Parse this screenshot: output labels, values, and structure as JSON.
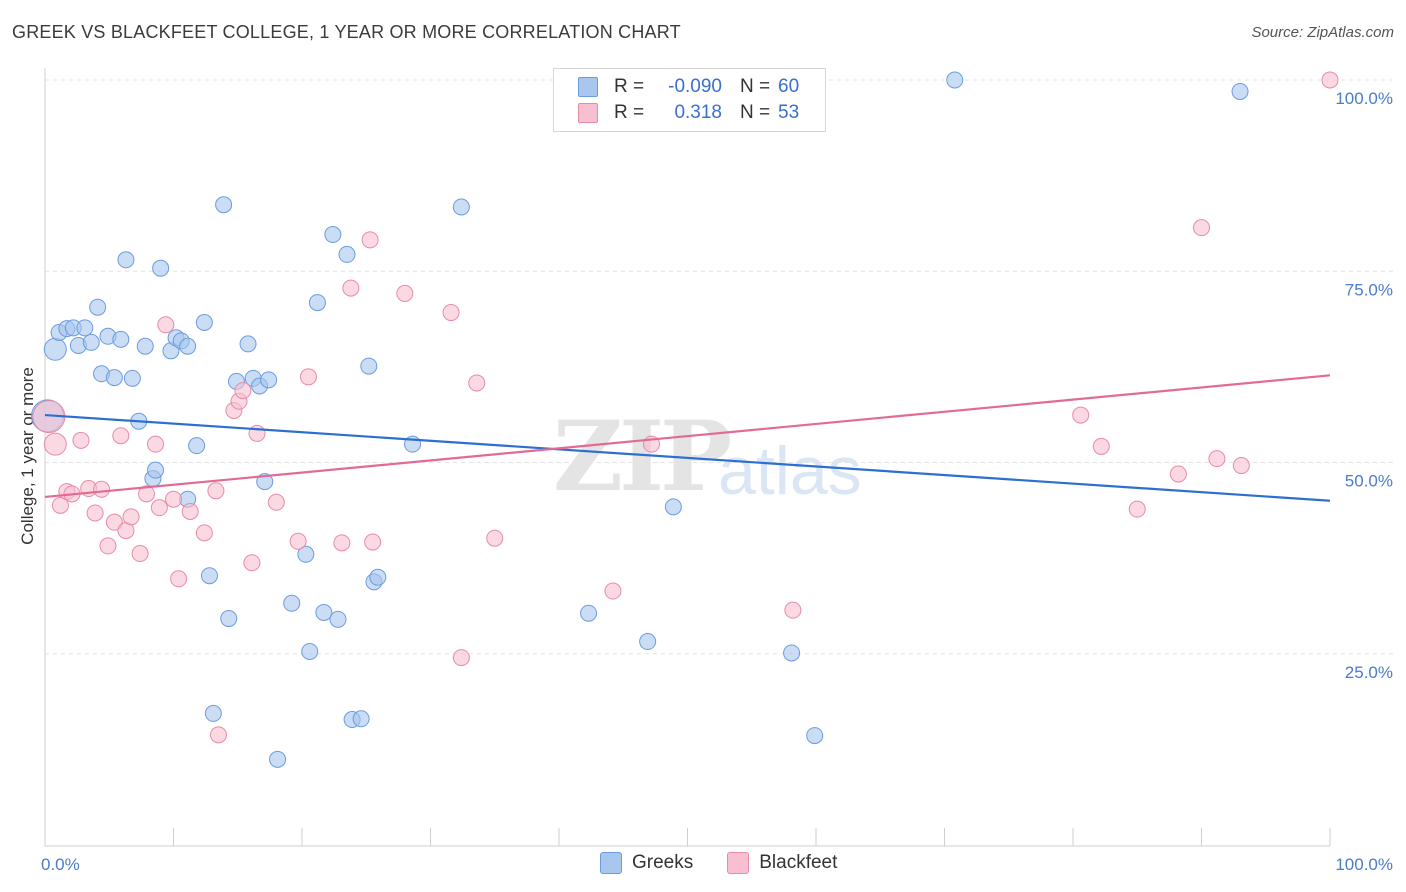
{
  "header": {
    "title": "GREEK VS BLACKFEET COLLEGE, 1 YEAR OR MORE CORRELATION CHART",
    "source": "Source: ZipAtlas.com"
  },
  "watermark": {
    "zip": "ZIP",
    "atlas": "atlas"
  },
  "legend": {
    "rows": [
      {
        "r_label": "R =",
        "r_value": "-0.090",
        "n_label": "N =",
        "n_value": "60",
        "color": "#a8c6ee",
        "border": "#6a9ce0"
      },
      {
        "r_label": "R =",
        "r_value": "0.318",
        "n_label": "N =",
        "n_value": "53",
        "color": "#f8bfd0",
        "border": "#e98aa8"
      }
    ]
  },
  "bottom_legend": {
    "greeks": "Greeks",
    "blackfeet": "Blackfeet"
  },
  "chart_data": {
    "type": "scatter",
    "title": "GREEK VS BLACKFEET COLLEGE, 1 YEAR OR MORE CORRELATION CHART",
    "xlabel": "",
    "ylabel": "College, 1 year or more",
    "xlim": [
      0,
      100
    ],
    "ylim": [
      0,
      100
    ],
    "x_tick_labels": [
      "0.0%",
      "100.0%"
    ],
    "y_tick_labels": [
      "25.0%",
      "50.0%",
      "75.0%",
      "100.0%"
    ],
    "y_ticks": [
      25,
      50,
      75,
      100
    ],
    "grid": true,
    "legend_position": "top-center",
    "series": [
      {
        "name": "Greeks",
        "color": "#6a9ce0",
        "fill": "#a8c6ee",
        "trend": {
          "x": [
            0,
            100
          ],
          "y": [
            56.2,
            45.0
          ],
          "color": "#2d6fd1"
        },
        "points": [
          [
            0.2,
            56.1
          ],
          [
            0.8,
            64.8
          ],
          [
            1.1,
            67.0
          ],
          [
            1.7,
            67.5
          ],
          [
            2.2,
            67.6
          ],
          [
            2.6,
            65.3
          ],
          [
            3.1,
            67.6
          ],
          [
            3.6,
            65.7
          ],
          [
            4.1,
            70.3
          ],
          [
            4.4,
            61.6
          ],
          [
            4.9,
            66.5
          ],
          [
            5.4,
            61.1
          ],
          [
            5.9,
            66.1
          ],
          [
            6.3,
            76.5
          ],
          [
            6.8,
            61.0
          ],
          [
            7.3,
            55.4
          ],
          [
            7.8,
            65.2
          ],
          [
            8.4,
            47.9
          ],
          [
            8.6,
            49.0
          ],
          [
            9.0,
            75.4
          ],
          [
            9.8,
            64.6
          ],
          [
            10.2,
            66.3
          ],
          [
            10.6,
            65.9
          ],
          [
            11.1,
            65.2
          ],
          [
            11.1,
            45.2
          ],
          [
            11.8,
            52.2
          ],
          [
            12.4,
            68.3
          ],
          [
            12.8,
            35.2
          ],
          [
            13.1,
            17.2
          ],
          [
            13.9,
            83.7
          ],
          [
            14.3,
            29.6
          ],
          [
            14.9,
            60.6
          ],
          [
            15.8,
            65.5
          ],
          [
            16.2,
            61.0
          ],
          [
            16.7,
            60.0
          ],
          [
            17.1,
            47.5
          ],
          [
            17.4,
            60.8
          ],
          [
            18.1,
            11.2
          ],
          [
            19.2,
            31.6
          ],
          [
            20.3,
            38.0
          ],
          [
            20.6,
            25.3
          ],
          [
            21.2,
            70.9
          ],
          [
            21.7,
            30.4
          ],
          [
            22.4,
            79.8
          ],
          [
            22.8,
            29.5
          ],
          [
            23.5,
            77.2
          ],
          [
            23.9,
            16.4
          ],
          [
            24.6,
            16.5
          ],
          [
            25.2,
            62.6
          ],
          [
            25.6,
            34.4
          ],
          [
            25.9,
            35.0
          ],
          [
            28.6,
            52.4
          ],
          [
            32.4,
            83.4
          ],
          [
            42.3,
            30.3
          ],
          [
            46.9,
            26.6
          ],
          [
            48.9,
            44.2
          ],
          [
            58.1,
            25.1
          ],
          [
            59.9,
            14.3
          ],
          [
            70.8,
            100.0
          ],
          [
            93.0,
            98.5
          ]
        ]
      },
      {
        "name": "Blackfeet",
        "color": "#e98aa8",
        "fill": "#f8bfd0",
        "trend": {
          "x": [
            0,
            100
          ],
          "y": [
            45.5,
            61.4
          ],
          "color": "#e36a94"
        },
        "points": [
          [
            0.3,
            56.0
          ],
          [
            0.8,
            52.4
          ],
          [
            1.2,
            44.4
          ],
          [
            1.7,
            46.2
          ],
          [
            2.1,
            45.9
          ],
          [
            2.8,
            52.9
          ],
          [
            3.4,
            46.6
          ],
          [
            3.9,
            43.4
          ],
          [
            4.4,
            46.5
          ],
          [
            4.9,
            39.1
          ],
          [
            5.4,
            42.2
          ],
          [
            5.9,
            53.5
          ],
          [
            6.3,
            41.1
          ],
          [
            6.7,
            42.9
          ],
          [
            7.4,
            38.1
          ],
          [
            7.9,
            45.9
          ],
          [
            8.6,
            52.4
          ],
          [
            8.9,
            44.1
          ],
          [
            9.4,
            68.0
          ],
          [
            10.0,
            45.2
          ],
          [
            10.4,
            34.8
          ],
          [
            11.3,
            43.6
          ],
          [
            12.4,
            40.8
          ],
          [
            13.3,
            46.3
          ],
          [
            13.5,
            14.4
          ],
          [
            14.7,
            56.8
          ],
          [
            15.1,
            58.0
          ],
          [
            15.4,
            59.4
          ],
          [
            16.1,
            36.9
          ],
          [
            16.5,
            53.8
          ],
          [
            18.0,
            44.8
          ],
          [
            19.7,
            39.7
          ],
          [
            20.5,
            61.2
          ],
          [
            23.1,
            39.5
          ],
          [
            23.8,
            72.8
          ],
          [
            25.3,
            79.1
          ],
          [
            25.5,
            39.6
          ],
          [
            28.0,
            72.1
          ],
          [
            31.6,
            69.6
          ],
          [
            32.4,
            24.5
          ],
          [
            33.6,
            60.4
          ],
          [
            35.0,
            40.1
          ],
          [
            44.2,
            33.2
          ],
          [
            47.2,
            52.4
          ],
          [
            58.2,
            30.7
          ],
          [
            80.6,
            56.2
          ],
          [
            82.2,
            52.1
          ],
          [
            85.0,
            43.9
          ],
          [
            88.2,
            48.5
          ],
          [
            90.0,
            80.7
          ],
          [
            91.2,
            50.5
          ],
          [
            93.1,
            49.6
          ],
          [
            100.0,
            100.0
          ]
        ]
      }
    ]
  }
}
